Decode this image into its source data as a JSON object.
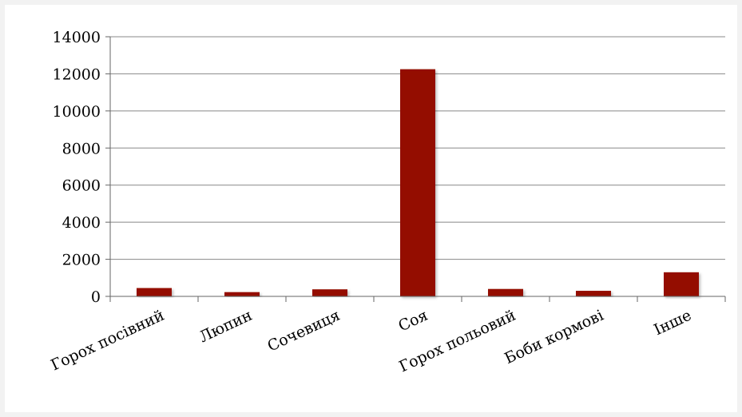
{
  "chart_data": {
    "type": "bar",
    "categories": [
      "Горох посівний",
      "Люпин",
      "Сочевиця",
      "Соя",
      "Горох польовий",
      "Боби кормові",
      "Інше"
    ],
    "values": [
      450,
      230,
      380,
      12250,
      400,
      300,
      1300
    ],
    "ylim": [
      0,
      14000
    ],
    "yticks": [
      0,
      2000,
      4000,
      6000,
      8000,
      10000,
      12000,
      14000
    ],
    "grid": true,
    "legend": "none",
    "colors": {
      "bar": "#941100",
      "grid": "#888888",
      "axis": "#666666"
    }
  }
}
